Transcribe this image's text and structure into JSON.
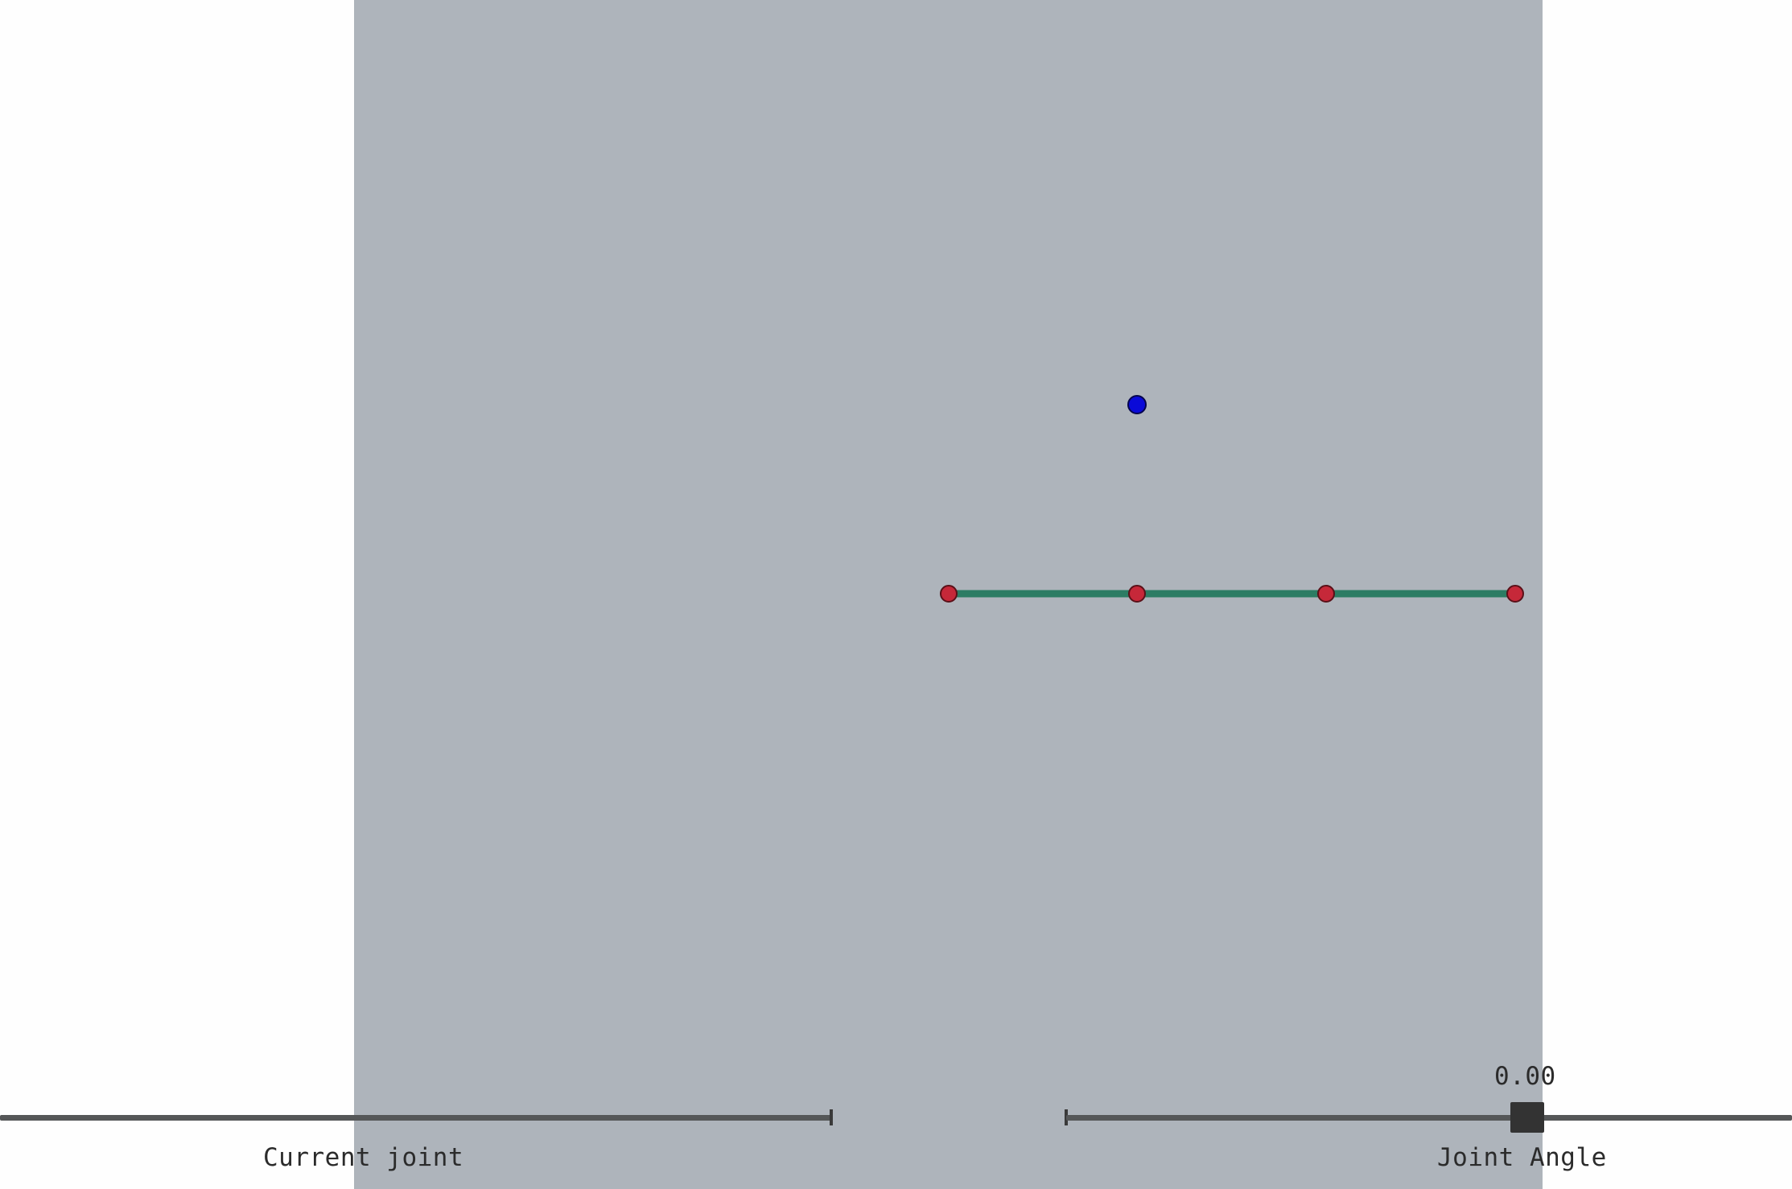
{
  "sliders": {
    "current_joint": {
      "label": "Current joint"
    },
    "joint_angle": {
      "label": "Joint Angle",
      "value_text": "0.00"
    }
  },
  "scene": {
    "background_color": "#aeb4bb",
    "link_color": "#2c7c63",
    "joint_color": "#c62839",
    "target_color": "#0a0ad8"
  }
}
